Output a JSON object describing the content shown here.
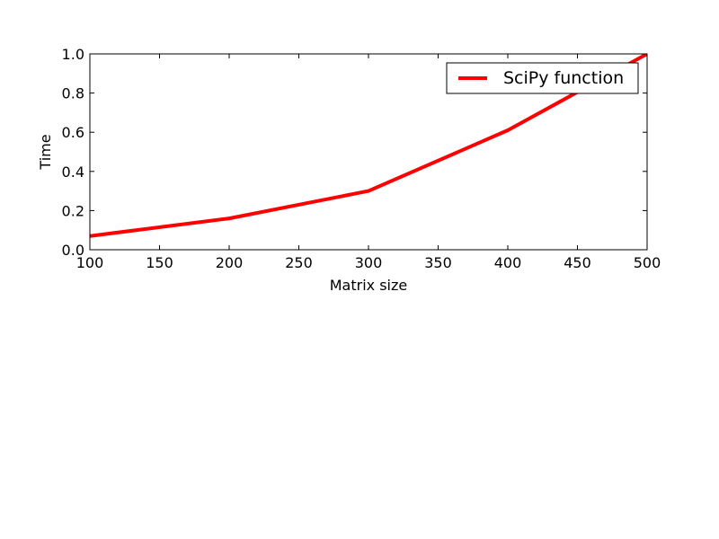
{
  "chart_data": {
    "type": "line",
    "title": "",
    "xlabel": "Matrix size",
    "ylabel": "Time",
    "xlim": [
      100,
      500
    ],
    "ylim": [
      0.0,
      1.0
    ],
    "xticks": [
      100,
      150,
      200,
      250,
      300,
      350,
      400,
      450,
      500
    ],
    "xtick_labels": [
      "100",
      "150",
      "200",
      "250",
      "300",
      "350",
      "400",
      "450",
      "500"
    ],
    "yticks": [
      0.0,
      0.2,
      0.4,
      0.6,
      0.8,
      1.0
    ],
    "ytick_labels": [
      "0.0",
      "0.2",
      "0.4",
      "0.6",
      "0.8",
      "1.0"
    ],
    "grid": false,
    "legend_position": "top-right",
    "series": [
      {
        "name": "SciPy function",
        "color": "#ff0000",
        "x": [
          100,
          200,
          300,
          400,
          500
        ],
        "y": [
          0.07,
          0.16,
          0.3,
          0.61,
          1.0
        ]
      }
    ]
  }
}
